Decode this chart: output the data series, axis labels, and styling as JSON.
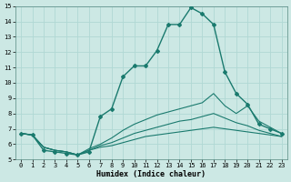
{
  "xlabel": "Humidex (Indice chaleur)",
  "ylabel": "",
  "xlim": [
    -0.5,
    23.5
  ],
  "ylim": [
    5,
    15
  ],
  "yticks": [
    5,
    6,
    7,
    8,
    9,
    10,
    11,
    12,
    13,
    14,
    15
  ],
  "xticks": [
    0,
    1,
    2,
    3,
    4,
    5,
    6,
    7,
    8,
    9,
    10,
    11,
    12,
    13,
    14,
    15,
    16,
    17,
    18,
    19,
    20,
    21,
    22,
    23
  ],
  "line_color": "#1a7a6e",
  "bg_color": "#cce8e4",
  "grid_color": "#b0d8d4",
  "lines": [
    {
      "x": [
        0,
        1,
        2,
        3,
        4,
        5,
        6,
        7,
        8,
        9,
        10,
        11,
        12,
        13,
        14,
        15,
        16,
        17,
        18,
        19,
        20,
        21,
        22,
        23
      ],
      "y": [
        6.7,
        6.6,
        5.6,
        5.5,
        5.4,
        5.3,
        5.5,
        7.8,
        8.3,
        10.4,
        11.1,
        11.1,
        12.1,
        13.8,
        13.8,
        14.9,
        14.5,
        13.8,
        10.7,
        9.3,
        8.6,
        7.3,
        7.0,
        6.7
      ],
      "marker": true
    },
    {
      "x": [
        0,
        1,
        2,
        3,
        4,
        5,
        6,
        7,
        8,
        9,
        10,
        11,
        12,
        13,
        14,
        15,
        16,
        17,
        18,
        19,
        20,
        21,
        22,
        23
      ],
      "y": [
        6.7,
        6.6,
        5.8,
        5.6,
        5.5,
        5.3,
        5.7,
        6.0,
        6.4,
        6.9,
        7.3,
        7.6,
        7.9,
        8.1,
        8.3,
        8.5,
        8.7,
        9.3,
        8.5,
        8.0,
        8.5,
        7.5,
        7.1,
        6.7
      ],
      "marker": false
    },
    {
      "x": [
        0,
        1,
        2,
        3,
        4,
        5,
        6,
        7,
        8,
        9,
        10,
        11,
        12,
        13,
        14,
        15,
        16,
        17,
        18,
        19,
        20,
        21,
        22,
        23
      ],
      "y": [
        6.7,
        6.6,
        5.8,
        5.6,
        5.5,
        5.3,
        5.6,
        5.9,
        6.1,
        6.4,
        6.7,
        6.9,
        7.1,
        7.3,
        7.5,
        7.6,
        7.8,
        8.0,
        7.7,
        7.4,
        7.2,
        6.9,
        6.7,
        6.5
      ],
      "marker": false
    },
    {
      "x": [
        0,
        1,
        2,
        3,
        4,
        5,
        6,
        7,
        8,
        9,
        10,
        11,
        12,
        13,
        14,
        15,
        16,
        17,
        18,
        19,
        20,
        21,
        22,
        23
      ],
      "y": [
        6.7,
        6.6,
        5.8,
        5.6,
        5.5,
        5.3,
        5.6,
        5.8,
        5.9,
        6.1,
        6.3,
        6.5,
        6.6,
        6.7,
        6.8,
        6.9,
        7.0,
        7.1,
        7.0,
        6.9,
        6.8,
        6.7,
        6.6,
        6.5
      ],
      "marker": false
    }
  ]
}
